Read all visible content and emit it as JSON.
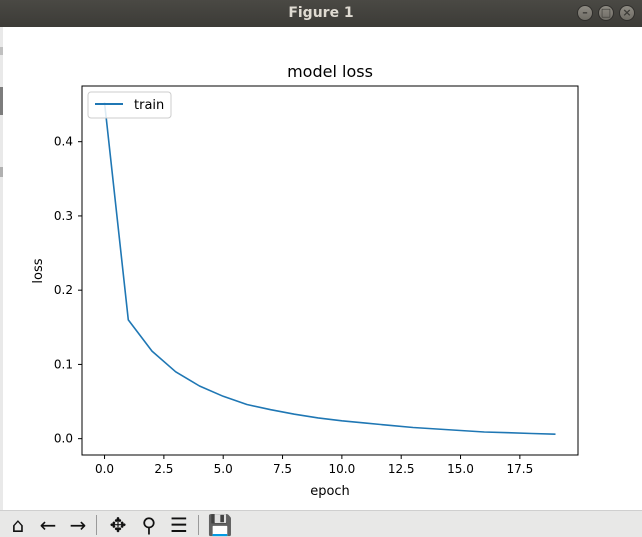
{
  "window": {
    "title": "Figure 1"
  },
  "chart_data": {
    "type": "line",
    "title": "model loss",
    "xlabel": "epoch",
    "ylabel": "loss",
    "xlim": [
      -0.95,
      19.95
    ],
    "ylim": [
      -0.022,
      0.475
    ],
    "xticks": [
      0.0,
      2.5,
      5.0,
      7.5,
      10.0,
      12.5,
      15.0,
      17.5
    ],
    "xtick_labels": [
      "0.0",
      "2.5",
      "5.0",
      "7.5",
      "10.0",
      "12.5",
      "15.0",
      "17.5"
    ],
    "yticks": [
      0.0,
      0.1,
      0.2,
      0.3,
      0.4
    ],
    "ytick_labels": [
      "0.0",
      "0.1",
      "0.2",
      "0.3",
      "0.4"
    ],
    "legend_position": "top-left",
    "grid": false,
    "series": [
      {
        "name": "train",
        "color": "#1f77b4",
        "x": [
          0,
          1,
          2,
          3,
          4,
          5,
          6,
          7,
          8,
          9,
          10,
          11,
          12,
          13,
          14,
          15,
          16,
          17,
          18,
          19
        ],
        "values": [
          0.453,
          0.16,
          0.118,
          0.09,
          0.071,
          0.057,
          0.046,
          0.039,
          0.033,
          0.028,
          0.024,
          0.021,
          0.018,
          0.015,
          0.013,
          0.011,
          0.009,
          0.008,
          0.007,
          0.006
        ]
      }
    ]
  },
  "toolbar": {
    "buttons": [
      {
        "name": "home-button",
        "icon": "home-icon",
        "glyph": "⌂"
      },
      {
        "name": "back-button",
        "icon": "arrow-left-icon",
        "glyph": "←"
      },
      {
        "name": "forward-button",
        "icon": "arrow-right-icon",
        "glyph": "→"
      },
      {
        "name": "pan-button",
        "icon": "move-icon",
        "glyph": "✥"
      },
      {
        "name": "zoom-button",
        "icon": "magnifier-icon",
        "glyph": "⚲"
      },
      {
        "name": "configure-subplots-button",
        "icon": "sliders-icon",
        "glyph": "☰"
      },
      {
        "name": "save-button",
        "icon": "floppy-disk-icon",
        "glyph": "💾"
      }
    ]
  }
}
